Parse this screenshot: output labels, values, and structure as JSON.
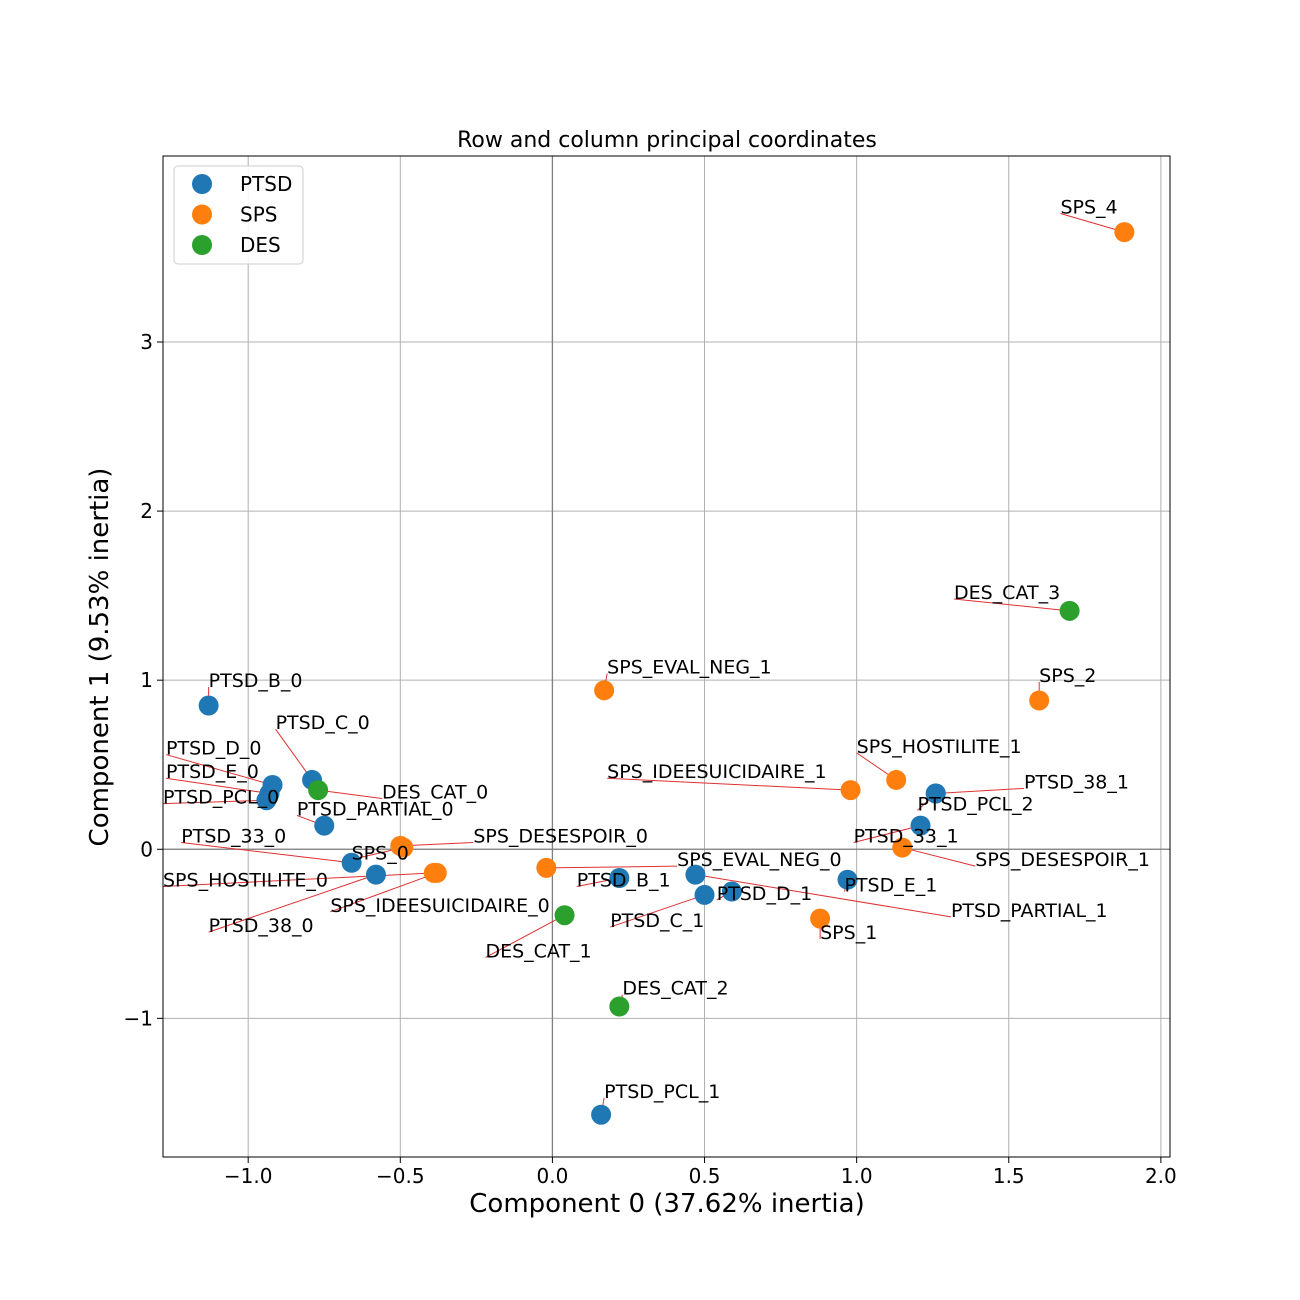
{
  "chart_data": {
    "type": "scatter",
    "title": "Row and column principal coordinates",
    "xlabel": "Component 0 (37.62% inertia)",
    "ylabel": "Component 1 (9.53% inertia)",
    "xlim": [
      -1.28,
      2.03
    ],
    "ylim": [
      -1.82,
      4.1
    ],
    "xticks": [
      -1.0,
      -0.5,
      0.0,
      0.5,
      1.0,
      1.5,
      2.0
    ],
    "xtick_labels": [
      "−1.0",
      "−0.5",
      "0.0",
      "0.5",
      "1.0",
      "1.5",
      "2.0"
    ],
    "yticks": [
      -1,
      0,
      1,
      2,
      3
    ],
    "ytick_labels": [
      "−1",
      "0",
      "1",
      "2",
      "3"
    ],
    "grid": true,
    "legend_position": "top-left",
    "series": [
      {
        "name": "PTSD",
        "color": "#1f77b4",
        "points": [
          {
            "label": "PTSD_B_0",
            "x": -1.13,
            "y": 0.85,
            "tx": -1.13,
            "ty": 0.96
          },
          {
            "label": "PTSD_C_0",
            "x": -0.79,
            "y": 0.41,
            "tx": -0.91,
            "ty": 0.71
          },
          {
            "label": "PTSD_D_0",
            "x": -0.92,
            "y": 0.38,
            "tx": -1.27,
            "ty": 0.56
          },
          {
            "label": "PTSD_E_0",
            "x": -0.93,
            "y": 0.33,
            "tx": -1.27,
            "ty": 0.42
          },
          {
            "label": "PTSD_PCL_0",
            "x": -0.94,
            "y": 0.29,
            "tx": -1.28,
            "ty": 0.27
          },
          {
            "label": "PTSD_PARTIAL_0",
            "x": -0.75,
            "y": 0.14,
            "tx": -0.84,
            "ty": 0.2
          },
          {
            "label": "PTSD_33_0",
            "x": -0.66,
            "y": -0.08,
            "tx": -1.22,
            "ty": 0.04
          },
          {
            "label": "PTSD_38_0",
            "x": -0.58,
            "y": -0.15,
            "tx": -1.13,
            "ty": -0.49
          },
          {
            "label": "PTSD_B_1",
            "x": 0.22,
            "y": -0.17,
            "tx": 0.08,
            "ty": -0.22
          },
          {
            "label": "PTSD_C_1",
            "x": 0.5,
            "y": -0.27,
            "tx": 0.19,
            "ty": -0.46
          },
          {
            "label": "PTSD_D_1",
            "x": 0.59,
            "y": -0.25,
            "tx": 0.54,
            "ty": -0.3
          },
          {
            "label": "PTSD_E_1",
            "x": 0.97,
            "y": -0.18,
            "tx": 0.96,
            "ty": -0.25
          },
          {
            "label": "PTSD_PARTIAL_1",
            "x": 0.47,
            "y": -0.15,
            "tx": 1.31,
            "ty": -0.4
          },
          {
            "label": "PTSD_33_1",
            "x": 1.21,
            "y": 0.14,
            "tx": 0.99,
            "ty": 0.04
          },
          {
            "label": "PTSD_38_1",
            "x": 1.26,
            "y": 0.33,
            "tx": 1.55,
            "ty": 0.36
          },
          {
            "label": "PTSD_PCL_2",
            "x": 1.26,
            "y": 0.33,
            "tx": 1.2,
            "ty": 0.23
          },
          {
            "label": "PTSD_PCL_1",
            "x": 0.16,
            "y": -1.57,
            "tx": 0.17,
            "ty": -1.47
          }
        ]
      },
      {
        "name": "SPS",
        "color": "#ff7f0e",
        "points": [
          {
            "label": "SPS_4",
            "x": 1.88,
            "y": 3.65,
            "tx": 1.67,
            "ty": 3.76
          },
          {
            "label": "SPS_2",
            "x": 1.6,
            "y": 0.88,
            "tx": 1.6,
            "ty": 0.99
          },
          {
            "label": "SPS_EVAL_NEG_1",
            "x": 0.17,
            "y": 0.94,
            "tx": 0.18,
            "ty": 1.04
          },
          {
            "label": "SPS_HOSTILITE_1",
            "x": 1.13,
            "y": 0.41,
            "tx": 1.0,
            "ty": 0.57
          },
          {
            "label": "SPS_IDEESUICIDAIRE_1",
            "x": 0.98,
            "y": 0.35,
            "tx": 0.18,
            "ty": 0.42
          },
          {
            "label": "SPS_DESESPOIR_0",
            "x": -0.5,
            "y": 0.02,
            "tx": -0.26,
            "ty": 0.04
          },
          {
            "label": "SPS_0",
            "x": -0.49,
            "y": 0.01,
            "tx": -0.66,
            "ty": -0.06
          },
          {
            "label": "SPS_HOSTILITE_0",
            "x": -0.39,
            "y": -0.14,
            "tx": -1.28,
            "ty": -0.22
          },
          {
            "label": "SPS_IDEESUICIDAIRE_0",
            "x": -0.38,
            "y": -0.14,
            "tx": -0.73,
            "ty": -0.37
          },
          {
            "label": "SPS_EVAL_NEG_0",
            "x": -0.02,
            "y": -0.11,
            "tx": 0.41,
            "ty": -0.1
          },
          {
            "label": "SPS_DESESPOIR_1",
            "x": 1.15,
            "y": 0.01,
            "tx": 1.39,
            "ty": -0.1
          },
          {
            "label": "SPS_1",
            "x": 0.88,
            "y": -0.41,
            "tx": 0.88,
            "ty": -0.53
          }
        ]
      },
      {
        "name": "DES",
        "color": "#2ca02c",
        "points": [
          {
            "label": "DES_CAT_3",
            "x": 1.7,
            "y": 1.41,
            "tx": 1.32,
            "ty": 1.48
          },
          {
            "label": "DES_CAT_0",
            "x": -0.77,
            "y": 0.35,
            "tx": -0.56,
            "ty": 0.3
          },
          {
            "label": "DES_CAT_1",
            "x": 0.04,
            "y": -0.39,
            "tx": -0.22,
            "ty": -0.64
          },
          {
            "label": "DES_CAT_2",
            "x": 0.22,
            "y": -0.93,
            "tx": 0.23,
            "ty": -0.86
          }
        ]
      }
    ]
  }
}
